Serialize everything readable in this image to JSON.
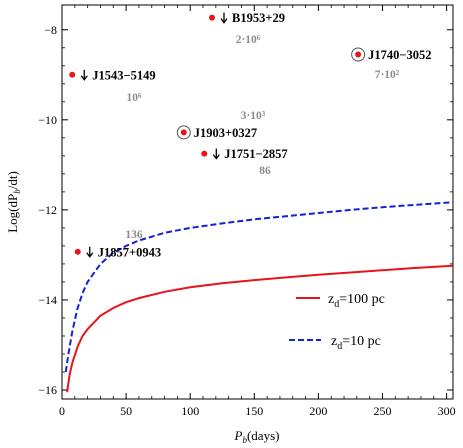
{
  "chart_data": {
    "type": "line",
    "xlabel_main": "P",
    "xlabel_sub": "b",
    "xlabel_unit": "(days)",
    "ylabel_main": "Log(dP",
    "ylabel_sub": "b",
    "ylabel_tail": "/dt)",
    "xlim": [
      0,
      305
    ],
    "ylim": [
      -16.2,
      -7.45
    ],
    "x_ticks": [
      0,
      50,
      100,
      150,
      200,
      250,
      300
    ],
    "y_ticks": [
      -16,
      -14,
      -12,
      -10,
      -8
    ],
    "series": [
      {
        "name": "z_d=100 pc",
        "legend_main": "z",
        "legend_sub": "d",
        "legend_tail": "=100 pc",
        "color": "#e8141c",
        "dash": "solid",
        "x": [
          4,
          6,
          8,
          12,
          16,
          20,
          30,
          40,
          50,
          60,
          80,
          100,
          125,
          150,
          175,
          200,
          225,
          250,
          275,
          305
        ],
        "y": [
          -16.05,
          -15.65,
          -15.4,
          -15.05,
          -14.8,
          -14.65,
          -14.35,
          -14.18,
          -14.05,
          -13.96,
          -13.82,
          -13.72,
          -13.63,
          -13.56,
          -13.5,
          -13.44,
          -13.39,
          -13.34,
          -13.29,
          -13.24
        ]
      },
      {
        "name": "z_d=10 pc",
        "legend_main": "z",
        "legend_sub": "d",
        "legend_tail": "=10 pc",
        "color": "#1421d6",
        "dash": "dashed",
        "x": [
          3,
          5,
          8,
          12,
          16,
          20,
          30,
          40,
          50,
          60,
          80,
          100,
          125,
          150,
          175,
          200,
          225,
          250,
          275,
          305
        ],
        "y": [
          -15.6,
          -15.2,
          -14.7,
          -14.2,
          -13.85,
          -13.6,
          -13.2,
          -12.95,
          -12.8,
          -12.68,
          -12.51,
          -12.4,
          -12.3,
          -12.21,
          -12.14,
          -12.07,
          -12.0,
          -11.94,
          -11.89,
          -11.83
        ]
      }
    ],
    "points": [
      {
        "name": "B1953+29",
        "x": 117,
        "y": -7.73,
        "style": "arrow",
        "note": "2·10⁶"
      },
      {
        "name": "J1543−5149",
        "x": 8,
        "y": -9.0,
        "style": "arrow",
        "note": "10⁶"
      },
      {
        "name": "J1740−3052",
        "x": 231,
        "y": -8.55,
        "style": "circle",
        "note": "7·10²"
      },
      {
        "name": "J1903+0327",
        "x": 95,
        "y": -10.28,
        "style": "circle",
        "note": "3·10³"
      },
      {
        "name": "J1751−2857",
        "x": 111,
        "y": -10.75,
        "style": "arrow",
        "note": "86"
      },
      {
        "name": "J1857+0943",
        "x": 12.3,
        "y": -12.93,
        "style": "arrow",
        "note": "136"
      }
    ]
  }
}
